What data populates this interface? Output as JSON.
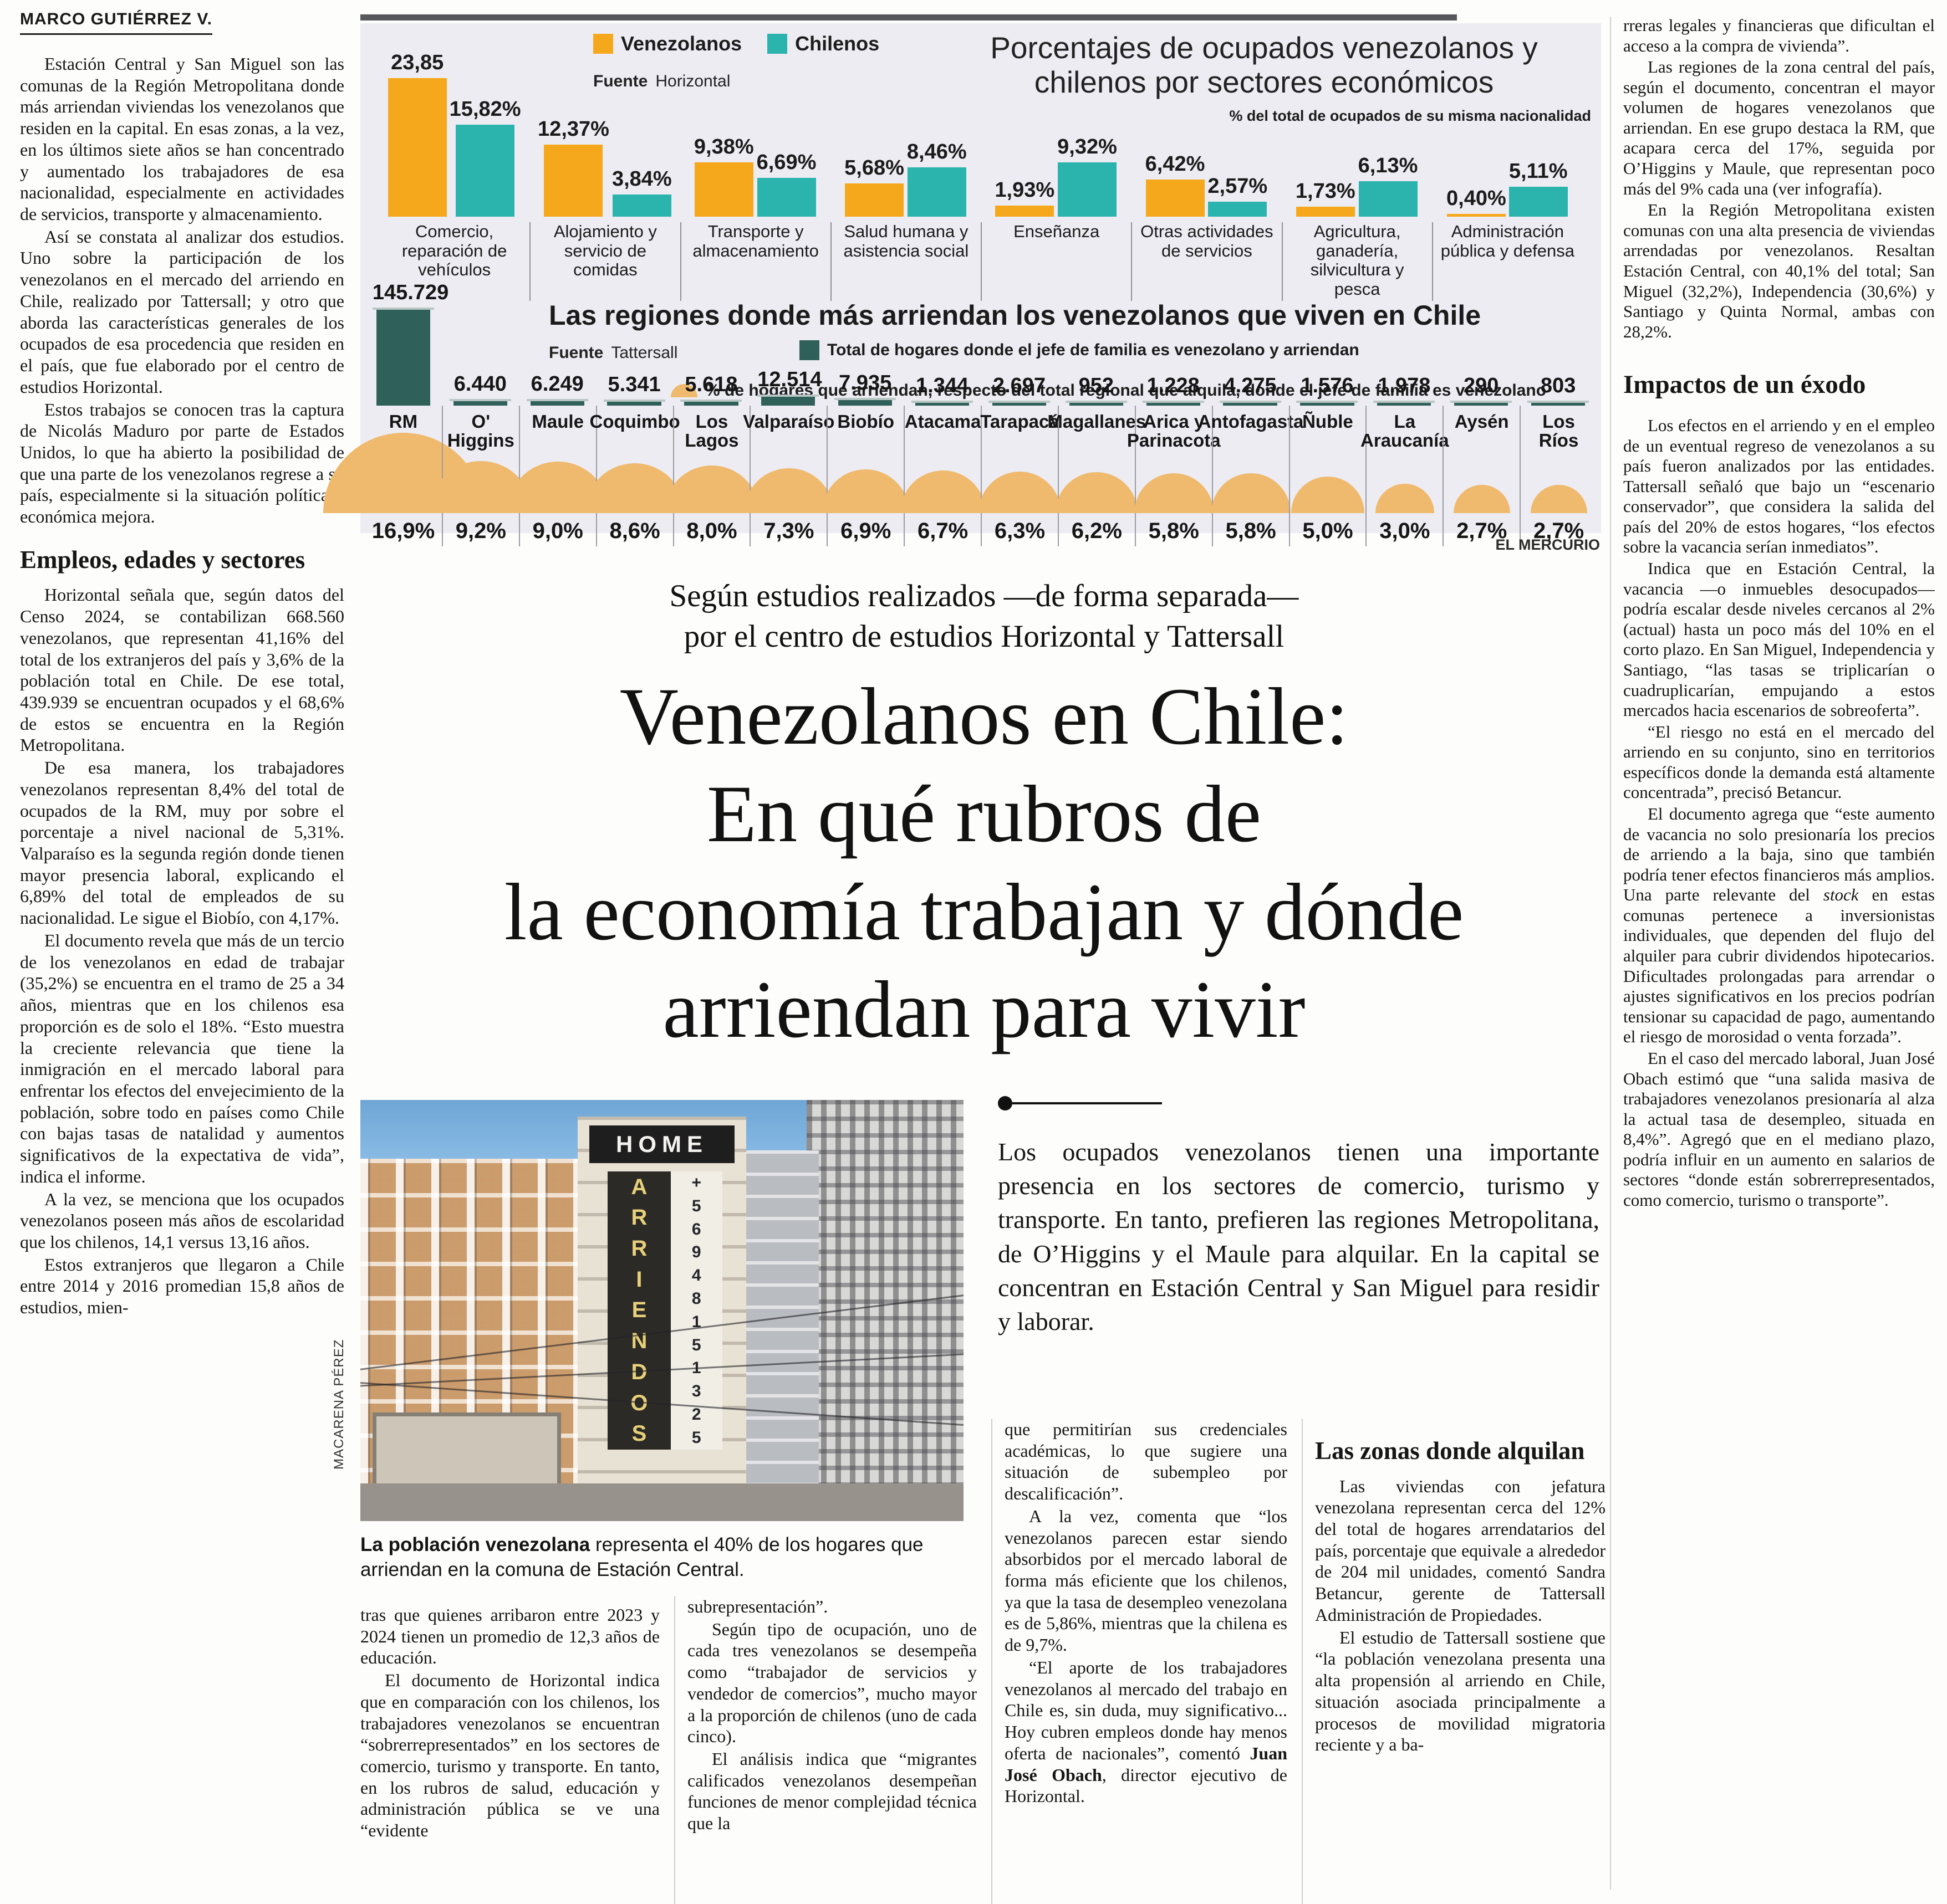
{
  "byline": "MARCO GUTIÉRREZ V.",
  "publication_credit": "EL MERCURIO",
  "colors": {
    "venezolanos": "#F6A81C",
    "chilenos": "#2BB3AD",
    "regiones_bar": "#30605A",
    "semicircle": "#EFBA6E",
    "panel_bg": "#EDECF2"
  },
  "chart_data": [
    {
      "type": "bar",
      "title": "Porcentajes de ocupados venezolanos y chilenos por sectores económicos",
      "subtitle": "% del total de ocupados de su misma nacionalidad",
      "source_label": "Fuente",
      "source": "Horizontal",
      "legend_position": "top",
      "categories": [
        "Comercio, reparación de vehículos",
        "Alojamiento y servicio de comidas",
        "Transporte y almacenamiento",
        "Salud humana y asistencia social",
        "Enseñanza",
        "Otras actividades de servicios",
        "Agricultura, ganadería, silvicultura y pesca",
        "Administración pública y defensa"
      ],
      "series": [
        {
          "name": "Venezolanos",
          "values": [
            23.85,
            12.37,
            9.38,
            5.68,
            1.93,
            6.42,
            1.73,
            0.4
          ],
          "labels": [
            "23,85",
            "12,37%",
            "9,38%",
            "5,68%",
            "1,93%",
            "6,42%",
            "1,73%",
            "0,40%"
          ]
        },
        {
          "name": "Chilenos",
          "values": [
            15.82,
            3.84,
            6.69,
            8.46,
            9.32,
            2.57,
            6.13,
            5.11
          ],
          "labels": [
            "15,82%",
            "3,84%",
            "6,69%",
            "8,46%",
            "9,32%",
            "2,57%",
            "6,13%",
            "5,11%"
          ]
        }
      ]
    },
    {
      "type": "bar",
      "title": "Las regiones donde más arriendan los venezolanos que viven en Chile",
      "source_label": "Fuente",
      "source": "Tattersall",
      "legend_total": "Total de hogares donde el jefe de familia es venezolano y arriendan",
      "legend_pct": "% de hogares que arriendan, respecto del total regional que alquila, donde el jefe de familia es venezolano",
      "regions": [
        {
          "name": "RM",
          "total": 145729,
          "total_label": "145.729",
          "pct": 16.9,
          "pct_label": "16,9%"
        },
        {
          "name": "O' Higgins",
          "total": 6440,
          "total_label": "6.440",
          "pct": 9.2,
          "pct_label": "9,2%"
        },
        {
          "name": "Maule",
          "total": 6249,
          "total_label": "6.249",
          "pct": 9.0,
          "pct_label": "9,0%"
        },
        {
          "name": "Coquimbo",
          "total": 5341,
          "total_label": "5.341",
          "pct": 8.6,
          "pct_label": "8,6%"
        },
        {
          "name": "Los Lagos",
          "total": 5618,
          "total_label": "5.618",
          "pct": 8.0,
          "pct_label": "8,0%"
        },
        {
          "name": "Valparaíso",
          "total": 12514,
          "total_label": "12.514",
          "pct": 7.3,
          "pct_label": "7,3%"
        },
        {
          "name": "Biobío",
          "total": 7935,
          "total_label": "7.935",
          "pct": 6.9,
          "pct_label": "6,9%"
        },
        {
          "name": "Atacama",
          "total": 1344,
          "total_label": "1.344",
          "pct": 6.7,
          "pct_label": "6,7%"
        },
        {
          "name": "Tarapacá",
          "total": 2697,
          "total_label": "2.697",
          "pct": 6.3,
          "pct_label": "6,3%"
        },
        {
          "name": "Magallanes",
          "total": 952,
          "total_label": "952",
          "pct": 6.2,
          "pct_label": "6,2%"
        },
        {
          "name": "Arica y Parinacota",
          "total": 1228,
          "total_label": "1.228",
          "pct": 5.8,
          "pct_label": "5,8%"
        },
        {
          "name": "Antofagasta",
          "total": 4275,
          "total_label": "4.275",
          "pct": 5.8,
          "pct_label": "5,8%"
        },
        {
          "name": "Ñuble",
          "total": 1576,
          "total_label": "1.576",
          "pct": 5.0,
          "pct_label": "5,0%"
        },
        {
          "name": "La Araucanía",
          "total": 1978,
          "total_label": "1.978",
          "pct": 3.0,
          "pct_label": "3,0%"
        },
        {
          "name": "Aysén",
          "total": 290,
          "total_label": "290",
          "pct": 2.7,
          "pct_label": "2,7%"
        },
        {
          "name": "Los Ríos",
          "total": 803,
          "total_label": "803",
          "pct": 2.7,
          "pct_label": "2,7%"
        }
      ]
    }
  ],
  "kicker_lines": [
    "Según estudios realizados —de forma separada—",
    "por el centro de estudios Horizontal y Tattersall"
  ],
  "headline_lines": [
    "Venezolanos en Chile:",
    "En qué rubros de",
    "la economía trabajan y dónde",
    "arriendan para vivir"
  ],
  "deck": "Los ocupados venezolanos tienen una importante presencia en los sectores de comercio, turismo y transporte. En tanto, prefieren las regiones Metropolitana, de O’Higgins y el Maule para alquilar. En la capital se concentran en Estación Central y San Miguel para residir y laborar.",
  "photo": {
    "credit": "MACARENA PÉREZ",
    "sign_brand": "HOME",
    "sign_vertical": "ARRIENDOS",
    "sign_phone": "+56948151325"
  },
  "caption": {
    "lead": "La población venezolana",
    "rest": " representa el 40% de los hogares que arriendan en la comuna de Estación Central."
  },
  "left_column": {
    "blocks": [
      {
        "t": "p",
        "x": "Estación Central y San Miguel son las comunas de la Región Metropolitana donde más arriendan viviendas los venezolanos que residen en la capital. En esas zonas, a la vez, en los últimos siete años se han concentrado y aumentado los trabajadores de esa nacionalidad, especialmente en actividades de servicios, transporte y almacenamiento."
      },
      {
        "t": "p",
        "x": "Así se constata al analizar dos estudios. Uno sobre la participación de los venezolanos en el mercado del arriendo en Chile, realizado por Tattersall; y otro que aborda las características generales de los ocupados de esa procedencia que residen en el país, que fue elaborado por el centro de estudios Horizontal."
      },
      {
        "t": "p",
        "x": "Estos trabajos se conocen tras la captura de Nicolás Maduro por parte de Estados Unidos, lo que ha abierto la posibilidad de que una parte de los venezolanos regrese a su país, especialmente si la situación política y económica mejora."
      },
      {
        "t": "h",
        "x": "Empleos, edades y sectores"
      },
      {
        "t": "p",
        "x": "Horizontal señala que, según datos del Censo 2024, se contabilizan 668.560 venezolanos, que representan 41,16% del total de los extranjeros del país y 3,6% de la población total en Chile. De ese total, 439.939 se encuentran ocupados y el 68,6% de estos se encuentra en la Región Metropolitana."
      },
      {
        "t": "p",
        "x": "De esa manera, los trabajadores venezolanos representan 8,4% del total de ocupados de la RM, muy por sobre el porcentaje a nivel nacional de 5,31%. Valparaíso es la segunda región donde tienen mayor presencia laboral, explicando el 6,89% del total de empleados de su nacionalidad. Le sigue el Biobío, con 4,17%."
      },
      {
        "t": "p",
        "x": "El documento revela que más de un tercio de los venezolanos en edad de trabajar (35,2%) se encuentra en el tramo de 25 a 34 años, mientras que en los chilenos esa proporción es de solo el 18%. “Esto muestra la creciente relevancia que tiene la inmigración en el mercado laboral para enfrentar los efectos del envejecimiento de la población, sobre todo en países como Chile con bajas tasas de natalidad y aumentos significativos de la expectativa de vida”, indica el informe."
      },
      {
        "t": "p",
        "x": "A la vez, se menciona que los ocupados venezolanos poseen más años de escolaridad que los chilenos, 14,1 versus 13,16 años."
      },
      {
        "t": "p",
        "x": "Estos extranjeros que llegaron a Chile entre 2014 y 2016 promedian 15,8 años de estudios, mien-"
      }
    ]
  },
  "col_a": {
    "blocks": [
      {
        "t": "p",
        "n": 1,
        "x": "tras que quienes arribaron entre 2023 y 2024 tienen un promedio de 12,3 años de educación."
      },
      {
        "t": "p",
        "x": "El documento de Horizontal indica que en comparación con los chilenos, los trabajadores venezolanos se encuentran “sobrerrepresentados” en los sectores de comercio, turismo y transporte. En tanto, en los rubros de salud, educación y administración pública se ve una “evidente"
      }
    ]
  },
  "col_b": {
    "blocks": [
      {
        "t": "p",
        "n": 1,
        "x": "subrepresentación”."
      },
      {
        "t": "p",
        "x": "Según tipo de ocupación, uno de cada tres venezolanos se desempeña como “trabajador de servicios y vendedor de comercios”, mucho mayor a la proporción de chilenos (uno de cada cinco)."
      },
      {
        "t": "p",
        "x": "El análisis indica que “migrantes calificados venezolanos desempeñan funciones de menor complejidad técnica que la"
      }
    ]
  },
  "col_c": {
    "blocks": [
      {
        "t": "p",
        "n": 1,
        "x": "que permitirían sus credenciales académicas, lo que sugiere una situación de subempleo por descalificación”."
      },
      {
        "t": "p",
        "x": "A la vez, comenta que “los venezolanos parecen estar siendo absorbidos por el mercado laboral de forma más eficiente que los chilenos, ya que la tasa de desempleo venezolana es de 5,86%, mientras que la chilena es de 9,7%."
      },
      {
        "t": "p",
        "x": "“El aporte de los trabajadores venezolanos al mercado del trabajo en Chile es, sin duda, muy significativo... Hoy cubren empleos donde hay menos oferta de nacionales”, comentó **Juan José Obach**, director ejecutivo de Horizontal."
      }
    ]
  },
  "col_d": {
    "blocks": [
      {
        "t": "h",
        "x": "Las zonas donde alquilan"
      },
      {
        "t": "p",
        "x": "Las viviendas con jefatura venezolana representan cerca del 12% del total de hogares arrendatarios del país, porcentaje que equivale a alrededor de 204 mil unidades, comentó Sandra Betancur, gerente de Tattersall Administración de Propiedades."
      },
      {
        "t": "p",
        "x": "El estudio de Tattersall sostiene que “la población venezolana presenta una alta propensión al arriendo en Chile, situación asociada principalmente a procesos de movilidad migratoria reciente y a ba-"
      }
    ]
  },
  "right_column": {
    "blocks": [
      {
        "t": "p",
        "n": 1,
        "x": "rreras legales y financieras que dificultan el acceso a la compra de vivienda”."
      },
      {
        "t": "p",
        "x": "Las regiones de la zona central del país, según el documento, concentran el mayor volumen de hogares venezolanos que arriendan. En ese grupo destaca la RM, que acapara cerca del 17%, seguida por O’Higgins y Maule, que representan poco más del 9% cada una (ver infografía)."
      },
      {
        "t": "p",
        "x": "En la Región Metropolitana existen comunas con una alta presencia de viviendas arrendadas por venezolanos. Resaltan Estación Central, con 40,1% del total; San Miguel (32,2%), Independencia (30,6%) y Santiago y Quinta Normal, ambas con 28,2%."
      },
      {
        "t": "h",
        "x": "Impactos de un éxodo"
      },
      {
        "t": "p",
        "x": "Los efectos en el arriendo y en el empleo de un eventual regreso de venezolanos a su país fueron analizados por las entidades. Tattersall señaló que bajo un “escenario conservador”, que considera la salida del país del 20% de estos hogares, “los efectos sobre la vacancia serían inmediatos”."
      },
      {
        "t": "p",
        "x": "Indica que en Estación Central, la vacancia —o inmuebles desocupados— podría escalar desde niveles cercanos al 2% (actual) hasta un poco más del 10% en el corto plazo. En San Miguel, Independencia y Santiago, “las tasas se triplicarían o cuadruplicarían, empujando a estos mercados hacia escenarios de sobreoferta”."
      },
      {
        "t": "p",
        "x": "“El riesgo no está en el mercado del arriendo en su conjunto, sino en territorios específicos donde la demanda está altamente concentrada”, precisó Betancur."
      },
      {
        "t": "p",
        "x": "El documento agrega que “este aumento de vacancia no solo presionaría los precios de arriendo a la baja, sino que también podría tener efectos financieros más amplios. Una parte relevante del *stock* en estas comunas pertenece a inversionistas individuales, que dependen del flujo del alquiler para cubrir dividendos hipotecarios. Dificultades prolongadas para arrendar o ajustes significativos en los precios podrían tensionar su capacidad de pago, aumentando el riesgo de morosidad o venta forzada”."
      },
      {
        "t": "p",
        "x": "En el caso del mercado laboral, Juan José Obach estimó que “una salida masiva de trabajadores venezolanos presionaría al alza la actual tasa de desempleo, situada en 8,4%”. Agregó que en el mediano plazo, podría influir en un aumento en salarios de sectores “donde están sobrerrepresentados, como comercio, turismo o transporte”."
      }
    ]
  }
}
